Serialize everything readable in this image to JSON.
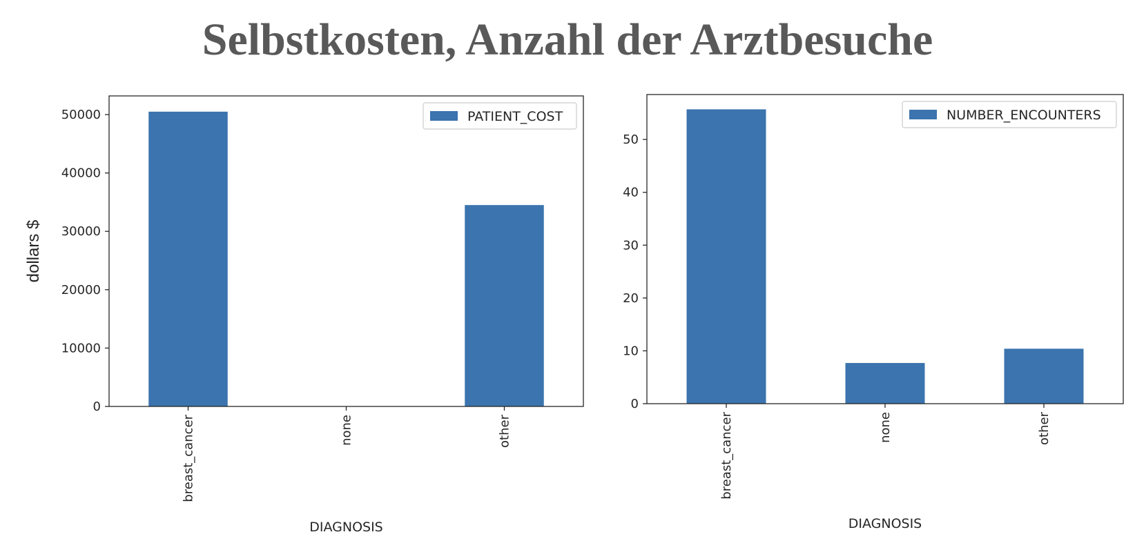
{
  "header": {
    "title": "Selbstkosten, Anzahl der Arztbesuche"
  },
  "colors": {
    "bar": "#3b74ae",
    "axis": "#262626",
    "legend_border": "#cccccc"
  },
  "chart_data": [
    {
      "type": "bar",
      "categories": [
        "breast_cancer",
        "none",
        "other"
      ],
      "series": [
        {
          "name": "PATIENT_COST",
          "values": [
            50500,
            0,
            34500
          ]
        }
      ],
      "xlabel": "DIAGNOSIS",
      "ylabel": "dollars $",
      "ylim": [
        0,
        53200
      ],
      "yticks": [
        0,
        10000,
        20000,
        30000,
        40000,
        50000
      ],
      "legend": "top-right",
      "grid": false
    },
    {
      "type": "bar",
      "categories": [
        "breast_cancer",
        "none",
        "other"
      ],
      "series": [
        {
          "name": "NUMBER_ENCOUNTERS",
          "values": [
            55.7,
            7.7,
            10.4
          ]
        }
      ],
      "xlabel": "DIAGNOSIS",
      "ylabel": "",
      "ylim": [
        0,
        58.5
      ],
      "yticks": [
        0,
        10,
        20,
        30,
        40,
        50
      ],
      "legend": "top-right",
      "grid": false
    }
  ]
}
